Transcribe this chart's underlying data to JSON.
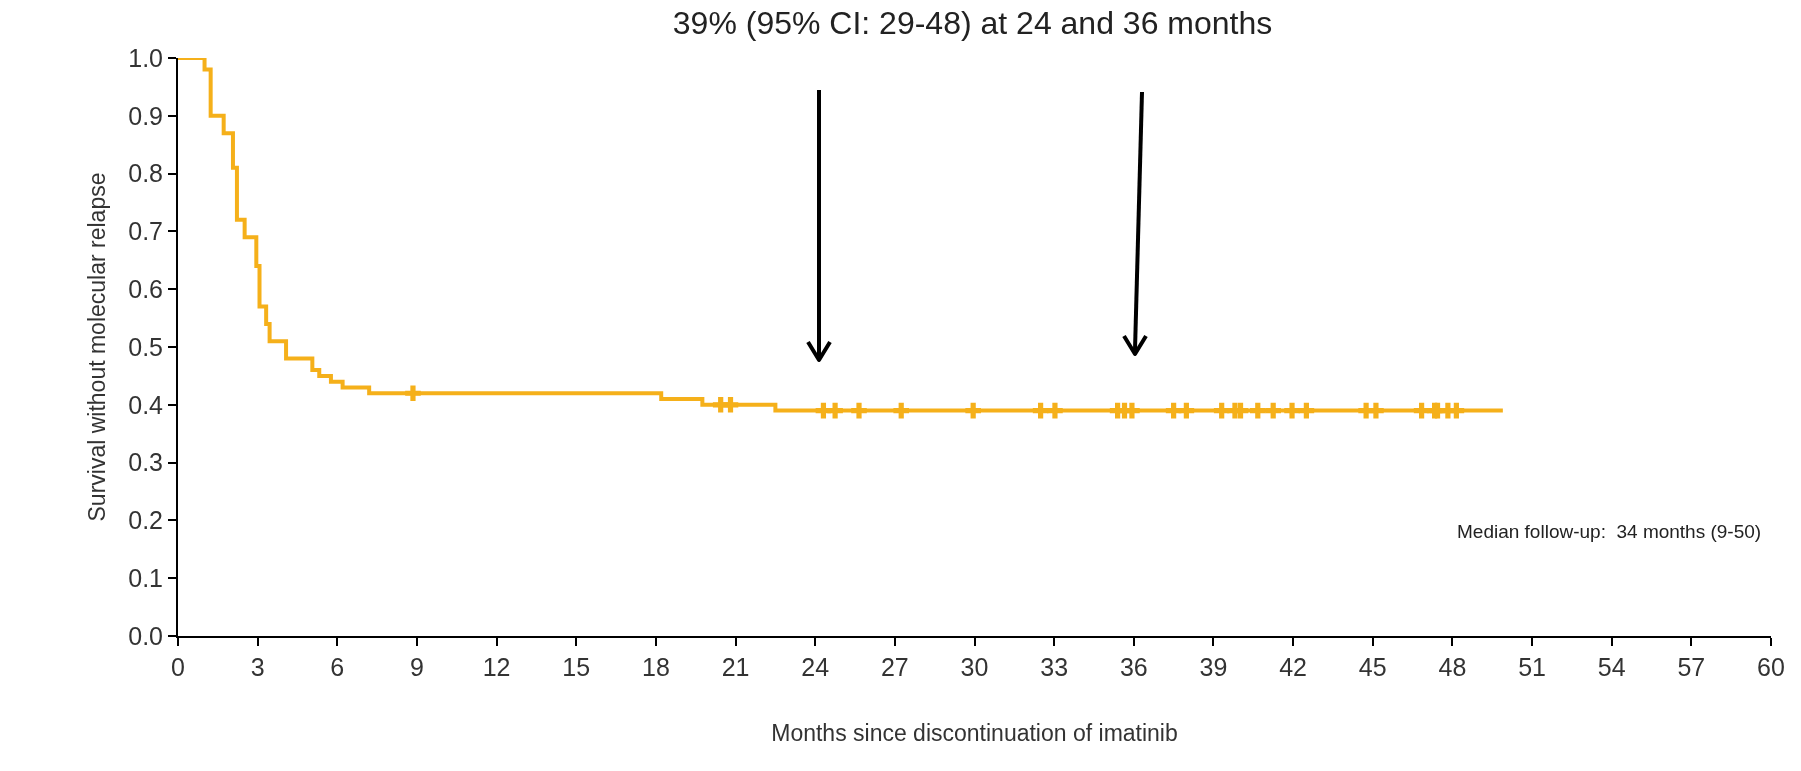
{
  "chart_data": {
    "type": "step",
    "title": "39% (95% CI: 29-48) at 24 and 36 months",
    "xlabel": "Months since discontinuation of imatinib",
    "ylabel": "Survival without molecular relapse",
    "annotations": [
      "Median follow-up:  34 months (9-50)"
    ],
    "series": [
      {
        "color": "#f5b01a",
        "x": [
          0,
          1.0,
          1.23,
          1.72,
          2.07,
          2.22,
          2.51,
          2.95,
          3.07,
          3.32,
          3.45,
          4.07,
          5.06,
          5.32,
          5.76,
          6.2,
          7.2,
          18.2,
          19.75,
          22.5,
          49.9
        ],
        "values": [
          1.0,
          0.98,
          0.9,
          0.87,
          0.81,
          0.72,
          0.69,
          0.64,
          0.57,
          0.54,
          0.51,
          0.48,
          0.46,
          0.45,
          0.44,
          0.43,
          0.42,
          0.41,
          0.4,
          0.39,
          0.39
        ]
      },
      {
        "type": "scatter",
        "marker": "cross",
        "color": "#f5b01a",
        "x": [
          8.85,
          20.44,
          20.81,
          24.31,
          24.75,
          25.65,
          27.24,
          29.95,
          32.49,
          33.03,
          35.39,
          35.65,
          35.93,
          37.5,
          37.98,
          39.31,
          39.81,
          40.02,
          40.67,
          41.25,
          41.96,
          42.5,
          44.75,
          45.12,
          46.84,
          47.33,
          47.44,
          47.83,
          48.15
        ],
        "values": [
          0.42,
          0.4,
          0.4,
          0.39,
          0.39,
          0.39,
          0.39,
          0.39,
          0.39,
          0.39,
          0.39,
          0.39,
          0.39,
          0.39,
          0.39,
          0.39,
          0.39,
          0.39,
          0.39,
          0.39,
          0.39,
          0.39,
          0.39,
          0.39,
          0.39,
          0.39,
          0.39,
          0.39,
          0.39
        ]
      }
    ],
    "xlim": [
      0,
      60
    ],
    "xticks": [
      0,
      3,
      6,
      9,
      12,
      15,
      18,
      21,
      24,
      27,
      30,
      33,
      36,
      39,
      42,
      45,
      48,
      51,
      54,
      57,
      60
    ],
    "ylim": [
      0,
      1
    ],
    "yticks": [
      {
        "value": 0,
        "label": "0.0"
      },
      0.1,
      0.2,
      0.3,
      0.4,
      0.5,
      0.6,
      0.7,
      0.8,
      0.9,
      {
        "value": 1,
        "label": "1.0"
      }
    ],
    "grid": false
  }
}
